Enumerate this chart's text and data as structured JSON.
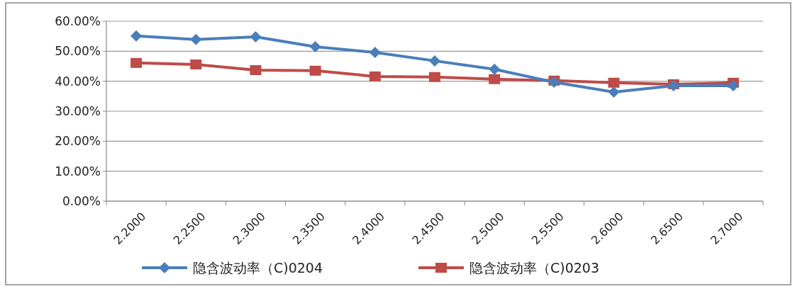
{
  "chart_data": {
    "type": "line",
    "categories": [
      "2.2000",
      "2.2500",
      "2.3000",
      "2.3500",
      "2.4000",
      "2.4500",
      "2.5000",
      "2.5500",
      "2.6000",
      "2.6500",
      "2.7000"
    ],
    "series": [
      {
        "name": "隐含波动率（C)0204",
        "color": "#4a7ebb",
        "marker": "diamond",
        "values": [
          55.1,
          53.9,
          54.8,
          51.5,
          49.6,
          46.8,
          44.0,
          39.7,
          36.4,
          38.5,
          38.5
        ]
      },
      {
        "name": "隐含波动率（C)0203",
        "color": "#be4b48",
        "marker": "square",
        "values": [
          46.1,
          45.6,
          43.7,
          43.5,
          41.6,
          41.4,
          40.7,
          40.2,
          39.5,
          39.0,
          39.5
        ]
      }
    ],
    "ylim": [
      0,
      60
    ],
    "yticks": [
      {
        "value": 0,
        "label": "0.00%"
      },
      {
        "value": 10,
        "label": "10.00%"
      },
      {
        "value": 20,
        "label": "20.00%"
      },
      {
        "value": 30,
        "label": "30.00%"
      },
      {
        "value": 40,
        "label": "40.00%"
      },
      {
        "value": 50,
        "label": "50.00%"
      },
      {
        "value": 60,
        "label": "60.00%"
      }
    ],
    "grid": "y",
    "legend": "bottom",
    "line_style": "solid"
  }
}
